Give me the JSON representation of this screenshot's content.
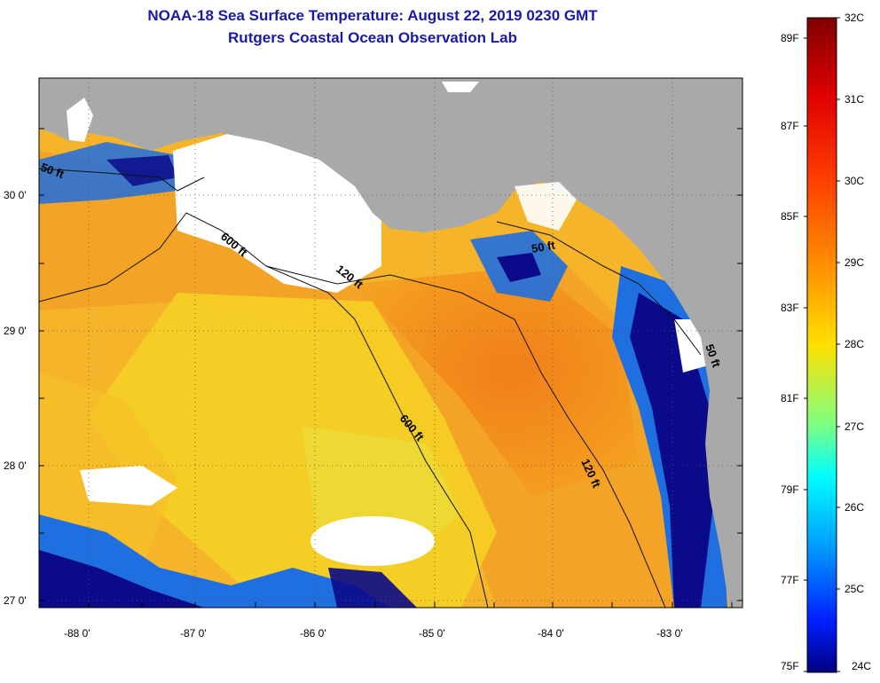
{
  "title": "NOAA-18 Sea Surface Temperature:  August 22, 2019 0230 GMT",
  "subtitle": "Rutgers Coastal Ocean Observation Lab",
  "colorbar": {
    "left_labels": [
      "89F",
      "87F",
      "85F",
      "83F",
      "81F",
      "79F",
      "77F",
      "75F"
    ],
    "right_labels": [
      "32C",
      "31C",
      "30C",
      "29C",
      "28C",
      "27C",
      "26C",
      "25C",
      "24C"
    ]
  },
  "lat_labels": [
    "30 0'",
    "29 0'",
    "28 0'",
    "27 0'"
  ],
  "lon_labels": [
    "-88 0'",
    "-87 0'",
    "-86 0'",
    "-85 0'",
    "-84 0'",
    "-83 0'"
  ],
  "contour_labels": [
    "50 ft",
    "600 ft",
    "120 ft",
    "50 ft",
    "600 ft",
    "120 ft",
    "50 ft"
  ],
  "colors": {
    "land": "#a9a9a9",
    "cloud": "#ffffff",
    "warm": "#f08a1e",
    "mid": "#f6d020",
    "cool": "#1f6fe0",
    "cold": "#0a0a8a"
  }
}
